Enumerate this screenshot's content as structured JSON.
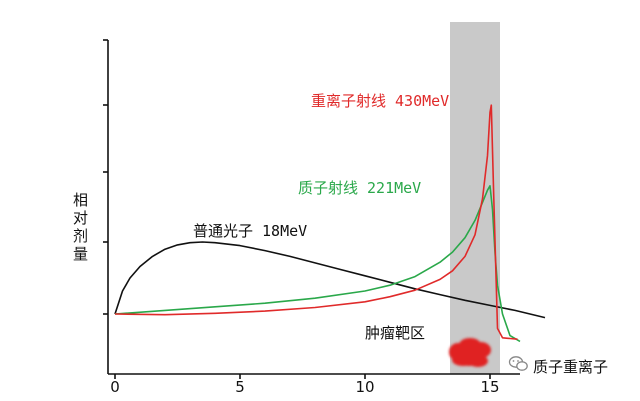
{
  "chart_data": {
    "type": "line",
    "title": "",
    "xlabel": "",
    "ylabel": "相对剂量",
    "xlim": [
      0,
      17
    ],
    "ylim": [
      -0.35,
      3.1
    ],
    "x_ticks": [
      0,
      5,
      10,
      15
    ],
    "y_ticks_count": 5,
    "grid": false,
    "legend": "inline labels",
    "highlight_region": {
      "label": "肿瘤靶区",
      "x_range": [
        13.4,
        15.4
      ],
      "color": "#c9c9c9",
      "tumor_color": "#e02020"
    },
    "series": [
      {
        "name": "普通光子 18MeV",
        "color": "#111111",
        "x": [
          0,
          0.3,
          0.6,
          1,
          1.5,
          2,
          2.5,
          3,
          3.5,
          4,
          5,
          6,
          7,
          8,
          9,
          10,
          11,
          12,
          13,
          14,
          15,
          16,
          17.2
        ],
        "y": [
          0,
          0.32,
          0.5,
          0.66,
          0.8,
          0.9,
          0.96,
          0.99,
          1.0,
          0.99,
          0.95,
          0.88,
          0.8,
          0.71,
          0.62,
          0.53,
          0.44,
          0.35,
          0.27,
          0.19,
          0.12,
          0.05,
          -0.05
        ]
      },
      {
        "name": "质子射线 221MeV",
        "color": "#2aa84a",
        "x": [
          0,
          2,
          4,
          6,
          8,
          10,
          11,
          12,
          13,
          13.5,
          14,
          14.4,
          14.7,
          14.9,
          15.0,
          15.1,
          15.2,
          15.3,
          15.5,
          15.8,
          16.2
        ],
        "y": [
          0,
          0.05,
          0.1,
          0.15,
          0.22,
          0.32,
          0.4,
          0.52,
          0.72,
          0.86,
          1.06,
          1.3,
          1.55,
          1.72,
          1.78,
          1.45,
          0.85,
          0.4,
          0.0,
          -0.3,
          -0.38
        ]
      },
      {
        "name": "重离子射线 430MeV",
        "color": "#e02a2a",
        "x": [
          0,
          2,
          4,
          6,
          8,
          10,
          11,
          12,
          13,
          13.5,
          14,
          14.4,
          14.7,
          14.9,
          15.0,
          15.05,
          15.15,
          15.3,
          15.5,
          15.8,
          16.1
        ],
        "y": [
          0,
          -0.01,
          0.01,
          0.04,
          0.09,
          0.17,
          0.24,
          0.33,
          0.48,
          0.6,
          0.8,
          1.1,
          1.6,
          2.2,
          2.8,
          2.9,
          1.6,
          -0.2,
          -0.33,
          -0.34,
          -0.35
        ]
      }
    ]
  },
  "watermark": {
    "text": "质子重离子",
    "icon": "wechat-icon"
  }
}
